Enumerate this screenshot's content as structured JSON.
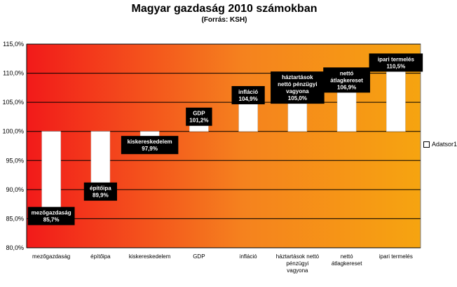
{
  "title": "Magyar gazdaság 2010 számokban",
  "subtitle": "(Forrás: KSH)",
  "legend_label": "Adatsor1",
  "chart_data": {
    "type": "bar",
    "title": "Magyar gazdaság 2010 számokban",
    "subtitle": "(Forrás: KSH)",
    "baseline": 100,
    "ylim": [
      80,
      115
    ],
    "yticks": [
      80,
      85,
      90,
      95,
      100,
      105,
      110,
      115
    ],
    "ytick_labels": [
      "80,0%",
      "85,0%",
      "90,0%",
      "95,0%",
      "100,0%",
      "105,0%",
      "110,0%",
      "115,0%"
    ],
    "grid": true,
    "legend": "right",
    "background_gradient": [
      "#f21a1a",
      "#f5821e",
      "#f6a410"
    ],
    "bar_color": "#ffffff",
    "label_box_color": "#000000",
    "categories": [
      [
        "mezőgazdaság"
      ],
      [
        "építőipa"
      ],
      [
        "kiskereskedelem"
      ],
      [
        "GDP"
      ],
      [
        "infláció"
      ],
      [
        "háztartások nettó",
        "pénzügyi",
        "vagyona"
      ],
      [
        "nettó",
        "átlagkereset"
      ],
      [
        "ipari termelés"
      ]
    ],
    "series": [
      {
        "name": "Adatsor1",
        "values": [
          85.7,
          89.9,
          97.9,
          101.2,
          104.9,
          105.0,
          106.9,
          110.5
        ],
        "data_labels": [
          [
            "mezőgazdaság",
            "85,7%"
          ],
          [
            "építőipa",
            "89,9%"
          ],
          [
            "kiskereskedelem",
            "97,9%"
          ],
          [
            "GDP",
            "101,2%"
          ],
          [
            "infláció",
            "104,9%"
          ],
          [
            "háztartások",
            "nettó pénzügyi",
            "vagyona",
            "105,0%"
          ],
          [
            "nettó",
            "átlagkereset",
            "106,9%"
          ],
          [
            "ipari termelés",
            "110,5%"
          ]
        ]
      }
    ]
  }
}
